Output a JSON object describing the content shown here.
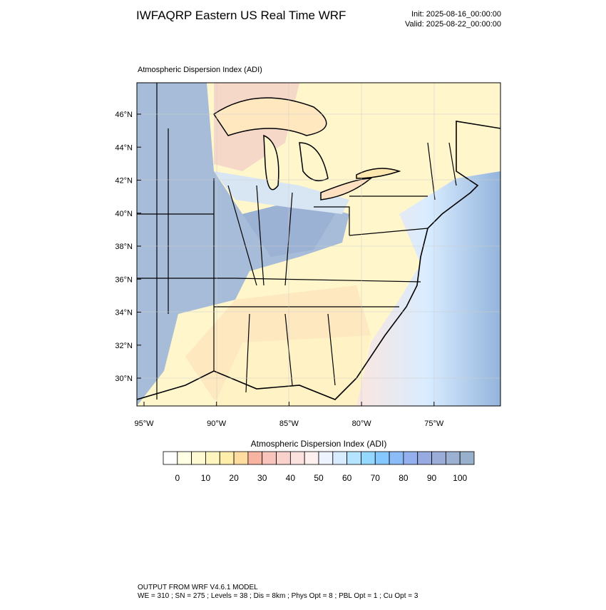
{
  "header": {
    "title": "IWFAQRP Eastern US Real Time WRF",
    "init": "Init: 2025-08-16_00:00:00",
    "valid": "Valid: 2025-08-22_00:00:00"
  },
  "map": {
    "title": "Atmospheric Dispersion Index   (ADI)",
    "lat_labels": [
      "46°N",
      "44°N",
      "42°N",
      "40°N",
      "38°N",
      "36°N",
      "34°N",
      "32°N",
      "30°N"
    ],
    "lon_labels": [
      "95°W",
      "90°W",
      "85°W",
      "80°W",
      "75°W"
    ]
  },
  "colorbar": {
    "title": "Atmospheric Dispersion Index  (ADI)",
    "colors": [
      "#ffffff",
      "#ffffe6",
      "#fffad2",
      "#fff5be",
      "#ffedaa",
      "#ffdca0",
      "#f8b4a0",
      "#f8c4bc",
      "#f9d2cc",
      "#fbe2de",
      "#fff0f0",
      "#eef4ff",
      "#d8ecff",
      "#b4e4ff",
      "#94d8ff",
      "#84c8ff",
      "#8cbcf8",
      "#94b0ee",
      "#98aae2",
      "#9cacd8",
      "#9cb0d2",
      "#98b0cc"
    ],
    "labels": [
      0,
      10,
      20,
      30,
      40,
      50,
      60,
      70,
      80,
      90,
      100
    ]
  },
  "footer": {
    "line1": "OUTPUT FROM WRF V4.6.1 MODEL",
    "line2": "WE = 310 ; SN = 275 ; Levels = 38 ; Dis = 8km ; Phys Opt = 8 ; PBL Opt = 1 ; Cu Opt = 3"
  }
}
